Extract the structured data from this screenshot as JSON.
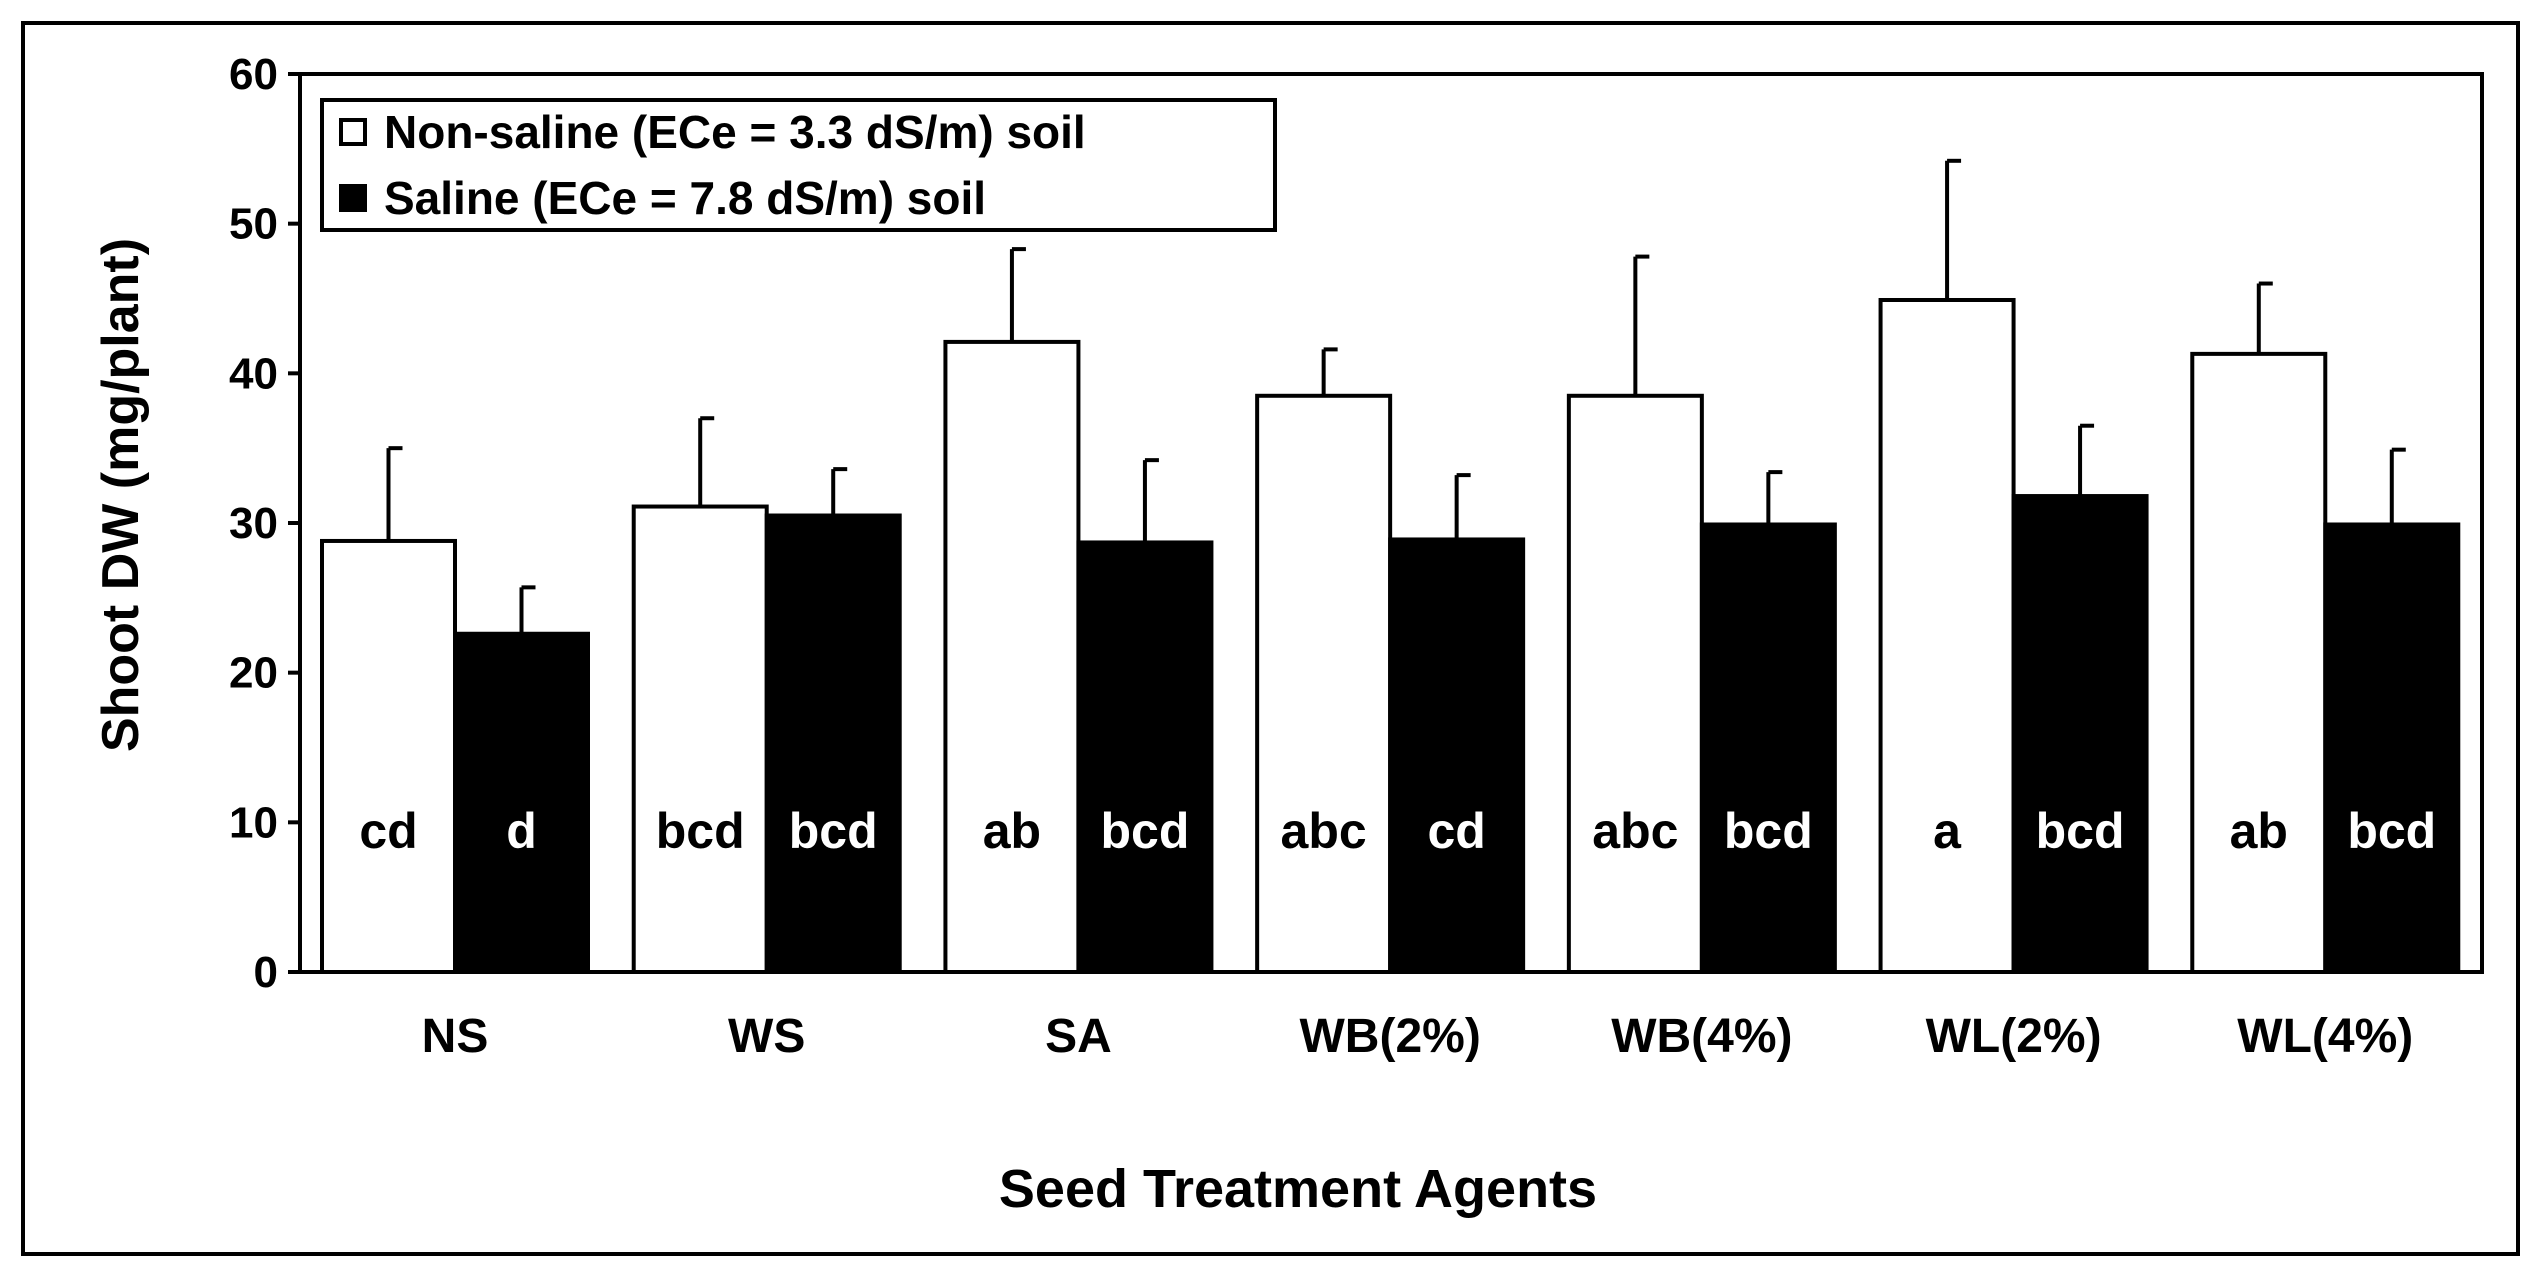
{
  "chart_data": {
    "type": "bar",
    "title": "",
    "xlabel": "Seed Treatment Agents",
    "ylabel": "Shoot DW (mg/plant)",
    "ylim": [
      0,
      60
    ],
    "yticks": [
      0,
      10,
      20,
      30,
      40,
      50,
      60
    ],
    "grid": false,
    "legend_position": "top-left",
    "categories": [
      "NS",
      "WS",
      "SA",
      "WB(2%)",
      "WB(4%)",
      "WL(2%)",
      "WL(4%)"
    ],
    "series": [
      {
        "name": "Non-saline (ECe = 3.3 dS/m) soil",
        "fill": "#ffffff",
        "values": [
          28.8,
          31.1,
          42.1,
          38.5,
          38.5,
          44.9,
          41.3
        ],
        "errors": [
          6.2,
          5.9,
          6.2,
          3.1,
          9.3,
          9.3,
          4.7
        ],
        "letters": [
          "cd",
          "bcd",
          "ab",
          "abc",
          "abc",
          "a",
          "ab"
        ]
      },
      {
        "name": "Saline (ECe = 7.8 dS/m) soil",
        "fill": "#000000",
        "values": [
          22.6,
          30.5,
          28.7,
          28.9,
          29.9,
          31.8,
          29.9
        ],
        "errors": [
          3.1,
          3.1,
          5.5,
          4.3,
          3.5,
          4.7,
          5.0
        ],
        "letters": [
          "d",
          "bcd",
          "bcd",
          "cd",
          "bcd",
          "bcd",
          "bcd"
        ]
      }
    ]
  }
}
